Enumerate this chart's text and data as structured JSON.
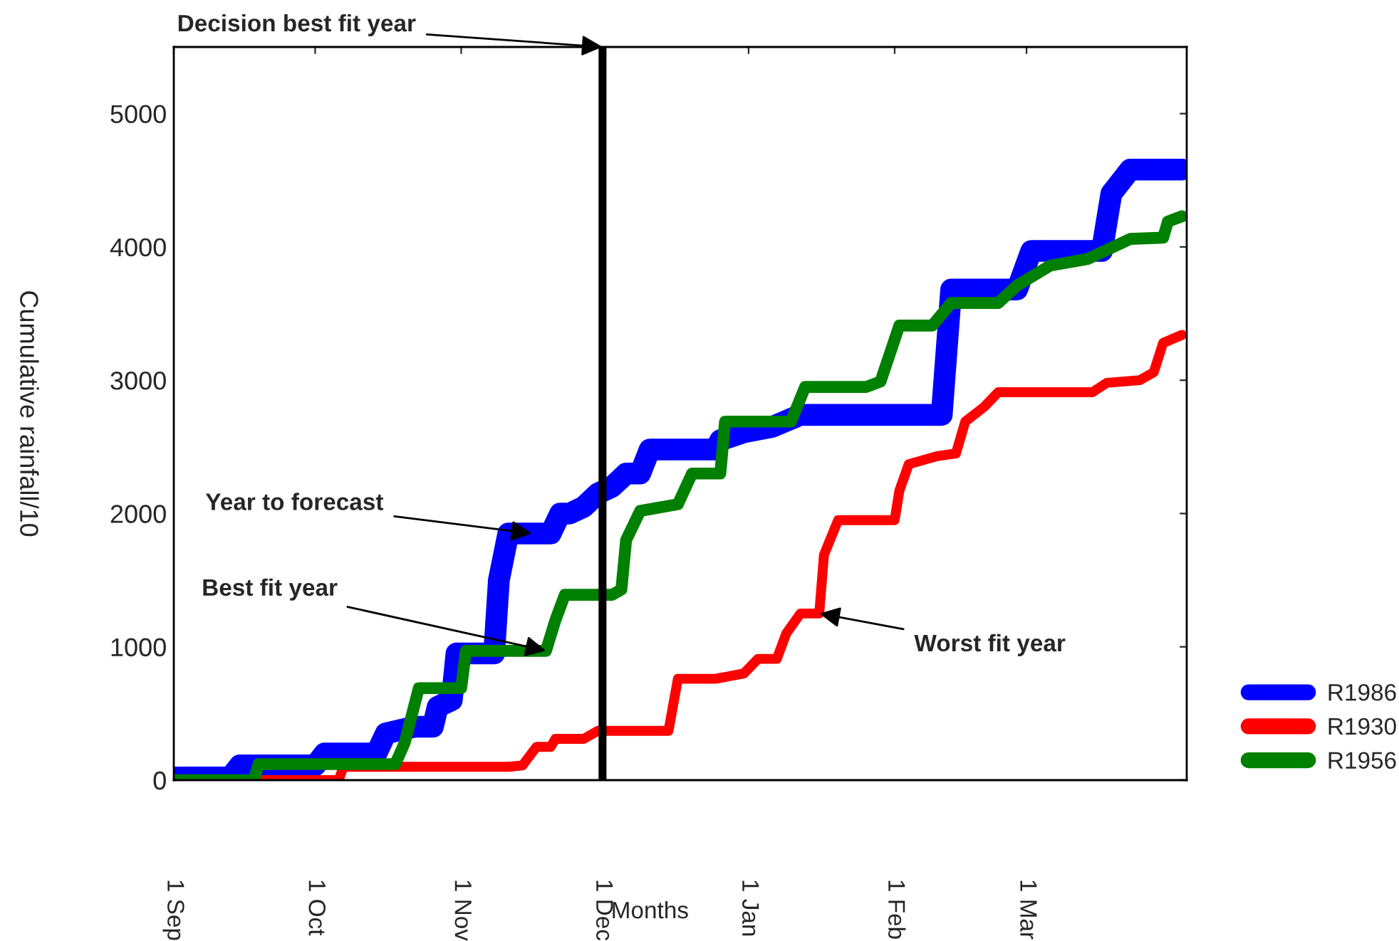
{
  "chart_data": {
    "type": "line",
    "xlabel": "Months",
    "ylabel": "Cumulative rainfall/10",
    "xlim": [
      "1985-09-01",
      "1986-04-04"
    ],
    "ylim": [
      0,
      5500
    ],
    "xticks": [
      {
        "value": "1985-09-01",
        "label": "1 Sep"
      },
      {
        "value": "1985-10-01",
        "label": "1 Oct"
      },
      {
        "value": "1985-11-01",
        "label": "1 Nov"
      },
      {
        "value": "1985-12-01",
        "label": "1 Dec"
      },
      {
        "value": "1986-01-01",
        "label": "1 Jan"
      },
      {
        "value": "1986-02-01",
        "label": "1 Feb"
      },
      {
        "value": "1986-03-01",
        "label": "1 Mar"
      }
    ],
    "yticks": [
      0,
      1000,
      2000,
      3000,
      4000,
      5000
    ],
    "grid": false,
    "legend": "bottom right",
    "marker": "none",
    "line_style": "solid",
    "series": [
      {
        "name": "R1986",
        "color": "#0000ff",
        "x": [
          "1985-09-01",
          "1985-09-13",
          "1985-09-15",
          "1985-10-01",
          "1985-10-03",
          "1985-10-14",
          "1985-10-16",
          "1985-10-22",
          "1985-10-26",
          "1985-10-27",
          "1985-10-30",
          "1985-10-31",
          "1985-11-08",
          "1985-11-09",
          "1985-11-11",
          "1985-11-20",
          "1985-11-22",
          "1985-11-24",
          "1985-11-27",
          "1985-11-30",
          "1985-12-03",
          "1985-12-06",
          "1985-12-09",
          "1985-12-11",
          "1985-12-25",
          "1985-12-26",
          "1985-12-31",
          "1986-01-06",
          "1986-01-12",
          "1986-02-11",
          "1986-02-13",
          "1986-02-27",
          "1986-03-02",
          "1986-03-17",
          "1986-03-19",
          "1986-03-23",
          "1986-04-03"
        ],
        "values": [
          20,
          20,
          110,
          110,
          200,
          200,
          350,
          400,
          400,
          550,
          600,
          950,
          950,
          1500,
          1850,
          1850,
          2000,
          2000,
          2050,
          2150,
          2200,
          2300,
          2300,
          2480,
          2480,
          2550,
          2610,
          2650,
          2740,
          2740,
          3680,
          3680,
          3970,
          3970,
          4400,
          4580,
          4580
        ]
      },
      {
        "name": "R1930",
        "color": "#ff0000",
        "x": [
          "1985-09-01",
          "1985-10-06",
          "1985-10-07",
          "1985-11-11",
          "1985-11-14",
          "1985-11-17",
          "1985-11-20",
          "1985-11-21",
          "1985-11-27",
          "1985-11-30",
          "1985-12-15",
          "1985-12-17",
          "1985-12-25",
          "1985-12-31",
          "1986-01-03",
          "1986-01-07",
          "1986-01-09",
          "1986-01-12",
          "1986-01-16",
          "1986-01-17",
          "1986-01-20",
          "1986-02-01",
          "1986-02-02",
          "1986-02-04",
          "1986-02-10",
          "1986-02-14",
          "1986-02-16",
          "1986-02-20",
          "1986-02-23",
          "1986-03-15",
          "1986-03-18",
          "1986-03-25",
          "1986-03-28",
          "1986-03-30",
          "1986-04-03"
        ],
        "values": [
          0,
          0,
          100,
          100,
          110,
          250,
          250,
          310,
          310,
          370,
          370,
          760,
          760,
          800,
          910,
          910,
          1100,
          1250,
          1250,
          1690,
          1950,
          1950,
          2170,
          2370,
          2430,
          2450,
          2690,
          2800,
          2910,
          2910,
          2980,
          3000,
          3060,
          3280,
          3340
        ]
      },
      {
        "name": "R1956",
        "color": "#008000",
        "x": [
          "1985-09-01",
          "1985-09-18",
          "1985-09-19",
          "1985-10-18",
          "1985-10-20",
          "1985-10-23",
          "1985-11-01",
          "1985-11-02",
          "1985-11-19",
          "1985-11-21",
          "1985-11-23",
          "1985-12-03",
          "1985-12-05",
          "1985-12-06",
          "1985-12-09",
          "1985-12-17",
          "1985-12-20",
          "1985-12-26",
          "1985-12-27",
          "1986-01-10",
          "1986-01-13",
          "1986-01-26",
          "1986-01-29",
          "1986-02-02",
          "1986-02-09",
          "1986-02-13",
          "1986-02-23",
          "1986-02-27",
          "1986-03-06",
          "1986-03-14",
          "1986-03-23",
          "1986-03-30",
          "1986-03-31",
          "1986-04-03"
        ],
        "values": [
          0,
          0,
          120,
          120,
          280,
          690,
          690,
          970,
          970,
          1200,
          1390,
          1390,
          1430,
          1800,
          2020,
          2070,
          2300,
          2300,
          2690,
          2690,
          2950,
          2950,
          2990,
          3410,
          3410,
          3580,
          3580,
          3710,
          3860,
          3910,
          4060,
          4070,
          4190,
          4230
        ]
      }
    ],
    "ref_lines": [
      {
        "axis": "x",
        "value": "1985-12-01",
        "color": "#000000",
        "line_style": "solid"
      }
    ],
    "annotations": [
      {
        "text": "Decision best fit year",
        "x": "1985-12-01",
        "y": 5500
      },
      {
        "text": "Year to forecast",
        "x": "1985-11-16",
        "y": 1850
      },
      {
        "text": "Best fit year",
        "x": "1985-11-19",
        "y": 970
      },
      {
        "text": "Worst fit year",
        "x": "1986-01-16",
        "y": 1250
      }
    ]
  }
}
